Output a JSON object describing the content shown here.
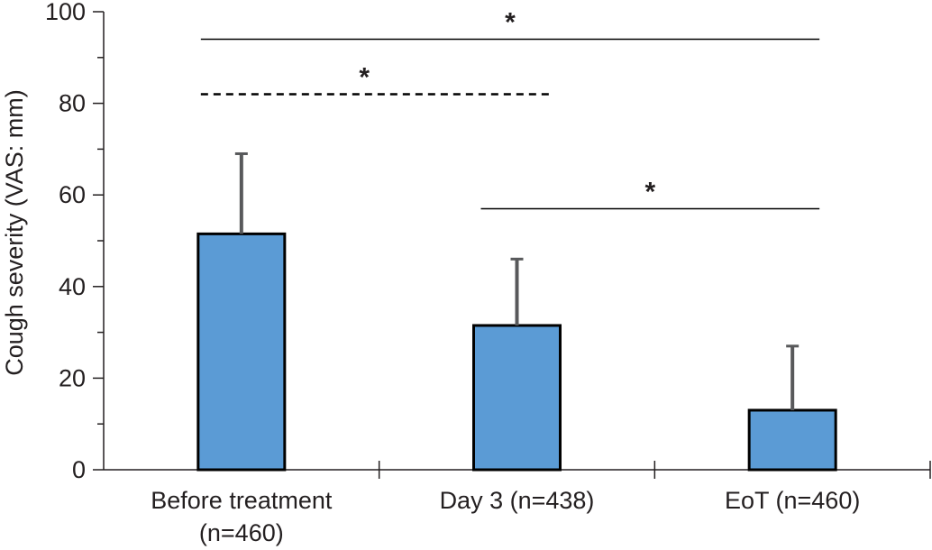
{
  "chart_data": {
    "type": "bar",
    "title": "",
    "xlabel": "",
    "ylabel": "Cough severity (VAS: mm)",
    "ylim": [
      0,
      100
    ],
    "yticks": [
      "0",
      "20",
      "40",
      "60",
      "80",
      "100"
    ],
    "grid": false,
    "categories": [
      [
        "Before treatment",
        "(n=460)"
      ],
      [
        "Day 3 (n=438)"
      ],
      [
        "EoT (n=460)"
      ]
    ],
    "values": [
      51.5,
      31.5,
      13
    ],
    "error_upper": [
      69,
      46,
      27
    ],
    "bar_color": "#5b9bd5",
    "significance": [
      {
        "from": 0,
        "to": 2,
        "label": "*",
        "style": "solid",
        "y": 94
      },
      {
        "from": 0,
        "to": 1,
        "label": "*",
        "style": "dashed",
        "y": 82
      },
      {
        "from": 1,
        "to": 2,
        "label": "*",
        "style": "solid",
        "y": 57
      }
    ]
  }
}
